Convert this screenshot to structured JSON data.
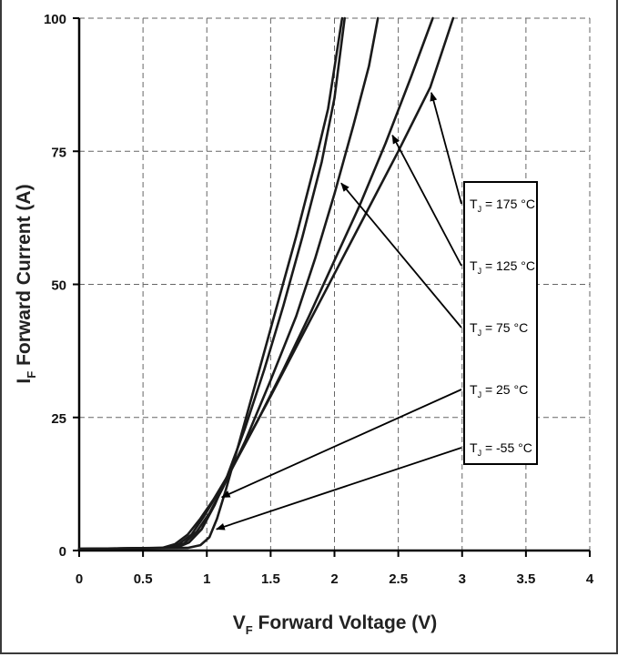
{
  "chart_data": {
    "type": "line",
    "xlabel_main": "V",
    "xlabel_sub": "F",
    "xlabel_rest": " Forward Voltage (V)",
    "ylabel_main": "I",
    "ylabel_sub": "F",
    "ylabel_rest": " Forward Current (A)",
    "xlim": [
      0,
      4
    ],
    "ylim": [
      0,
      100
    ],
    "x_ticks": [
      0,
      0.5,
      1,
      1.5,
      2,
      2.5,
      3,
      3.5,
      4
    ],
    "x_tick_labels": [
      "0",
      "0.5",
      "1",
      "1.5",
      "2",
      "2.5",
      "3",
      "3.5",
      "4"
    ],
    "y_ticks": [
      0,
      25,
      50,
      75,
      100
    ],
    "y_tick_labels": [
      "0",
      "25",
      "50",
      "75",
      "100"
    ],
    "grid": true,
    "legend_position": "right",
    "series": [
      {
        "name": "Tj = 175 °C",
        "label": "T",
        "label_sub": "J",
        "label_rest": " = 175 °C",
        "points": [
          [
            0,
            0.3
          ],
          [
            0.65,
            0.5
          ],
          [
            0.75,
            1.2
          ],
          [
            0.85,
            3
          ],
          [
            0.95,
            6
          ],
          [
            1.05,
            9.5
          ],
          [
            1.15,
            13.5
          ],
          [
            1.3,
            20
          ],
          [
            1.5,
            29
          ],
          [
            1.75,
            40.5
          ],
          [
            2.0,
            52
          ],
          [
            2.25,
            63.5
          ],
          [
            2.5,
            75
          ],
          [
            2.75,
            87
          ],
          [
            2.93,
            100
          ]
        ]
      },
      {
        "name": "Tj = 125 °C",
        "label": "T",
        "label_sub": "J",
        "label_rest": " = 125 °C",
        "points": [
          [
            0,
            0.3
          ],
          [
            0.68,
            0.5
          ],
          [
            0.78,
            1.2
          ],
          [
            0.88,
            3
          ],
          [
            0.98,
            6.5
          ],
          [
            1.08,
            10.5
          ],
          [
            1.2,
            15.5
          ],
          [
            1.4,
            24.5
          ],
          [
            1.6,
            34
          ],
          [
            1.8,
            44
          ],
          [
            2.0,
            54.5
          ],
          [
            2.2,
            65
          ],
          [
            2.4,
            76.5
          ],
          [
            2.6,
            89
          ],
          [
            2.77,
            100
          ]
        ]
      },
      {
        "name": "Tj = 75 °C",
        "label": "T",
        "label_sub": "J",
        "label_rest": " = 75 °C",
        "points": [
          [
            0,
            0.3
          ],
          [
            0.72,
            0.5
          ],
          [
            0.82,
            1.3
          ],
          [
            0.92,
            3.5
          ],
          [
            1.02,
            7
          ],
          [
            1.12,
            11.5
          ],
          [
            1.3,
            20.5
          ],
          [
            1.5,
            32
          ],
          [
            1.7,
            44
          ],
          [
            1.85,
            55
          ],
          [
            2.0,
            67
          ],
          [
            2.15,
            80
          ],
          [
            2.27,
            91
          ],
          [
            2.34,
            100
          ]
        ]
      },
      {
        "name": "Tj = 25 °C",
        "label": "T",
        "label_sub": "J",
        "label_rest": " = 25 °C",
        "points": [
          [
            0,
            0.3
          ],
          [
            0.76,
            0.5
          ],
          [
            0.86,
            1.5
          ],
          [
            0.96,
            4
          ],
          [
            1.06,
            8.5
          ],
          [
            1.16,
            14
          ],
          [
            1.3,
            23
          ],
          [
            1.45,
            34
          ],
          [
            1.6,
            46
          ],
          [
            1.75,
            59
          ],
          [
            1.9,
            73
          ],
          [
            2.0,
            85
          ],
          [
            2.08,
            100
          ]
        ]
      },
      {
        "name": "Tj = -55 °C",
        "label": "T",
        "label_sub": "J",
        "label_rest": " = -55 °C",
        "points": [
          [
            0,
            0.3
          ],
          [
            0.85,
            0.5
          ],
          [
            0.95,
            1
          ],
          [
            1.02,
            2.5
          ],
          [
            1.08,
            6
          ],
          [
            1.15,
            11.5
          ],
          [
            1.25,
            20
          ],
          [
            1.4,
            33
          ],
          [
            1.55,
            46
          ],
          [
            1.7,
            59
          ],
          [
            1.85,
            73
          ],
          [
            1.95,
            83
          ],
          [
            2.06,
            100
          ]
        ]
      }
    ]
  }
}
